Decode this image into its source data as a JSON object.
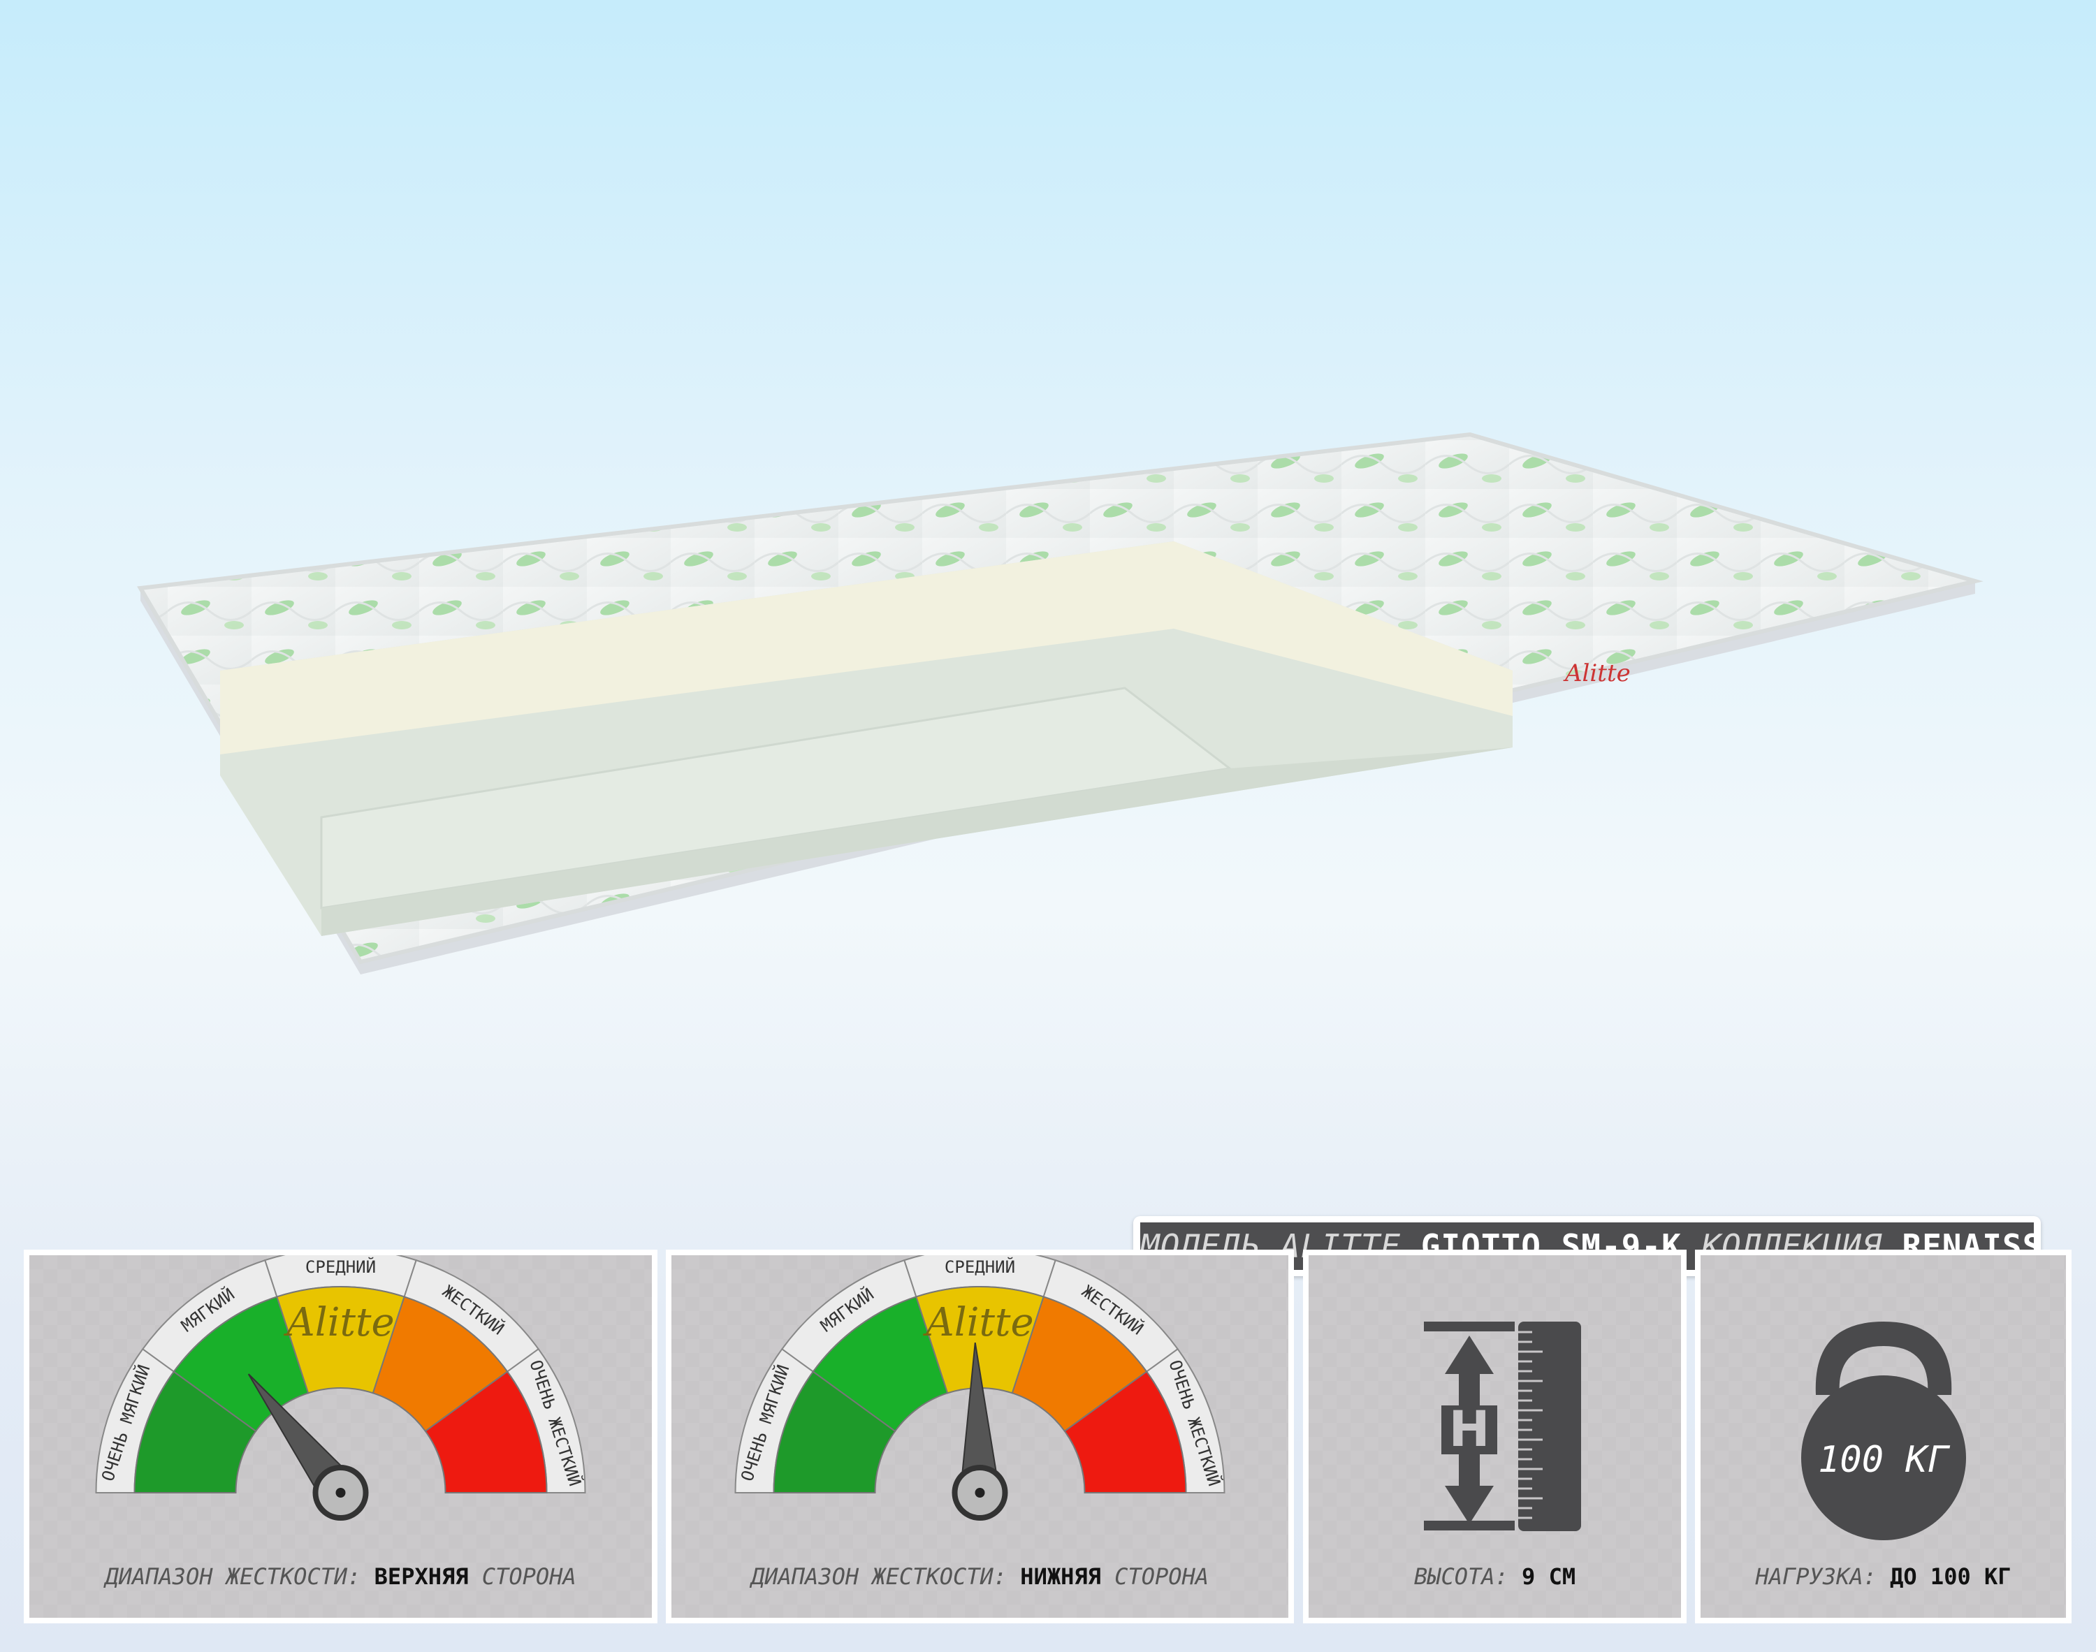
{
  "banner": {
    "model_prefix": "МОДЕЛЬ ALITTE",
    "model_name": "GIOTTO SM-9-K",
    "collection_prefix": "КОЛЛЕКЦИЯ",
    "collection_name": "RENAISSANCE"
  },
  "brand": {
    "logo_text": "Alitte"
  },
  "gauge_labels": [
    "ОЧЕНЬ МЯГКИЙ",
    "МЯГКИЙ",
    "СРЕДНИЙ",
    "ЖЕСТКИЙ",
    "ОЧЕНЬ ЖЕСТКИЙ"
  ],
  "gauge_colors": [
    "#1e9a2a",
    "#19b02a",
    "#e8c400",
    "#f07a00",
    "#ee1a10"
  ],
  "gauges": [
    {
      "caption_prefix": "ДИАПАЗОН ЖЕСТКОСТИ:",
      "caption_side": "ВЕРХНЯЯ",
      "caption_suffix": "СТОРОНА",
      "needle_level": 0.29
    },
    {
      "caption_prefix": "ДИАПАЗОН ЖЕСТКОСТИ:",
      "caption_side": "НИЖНЯЯ",
      "caption_suffix": "СТОРОНА",
      "needle_level": 0.49
    }
  ],
  "height": {
    "icon_letter": "H",
    "caption_prefix": "ВЫСОТА:",
    "caption_value": "9 СМ"
  },
  "load": {
    "icon_text": "100 КГ",
    "caption_prefix": "НАГРУЗКА:",
    "caption_value": "ДО 100 КГ"
  }
}
